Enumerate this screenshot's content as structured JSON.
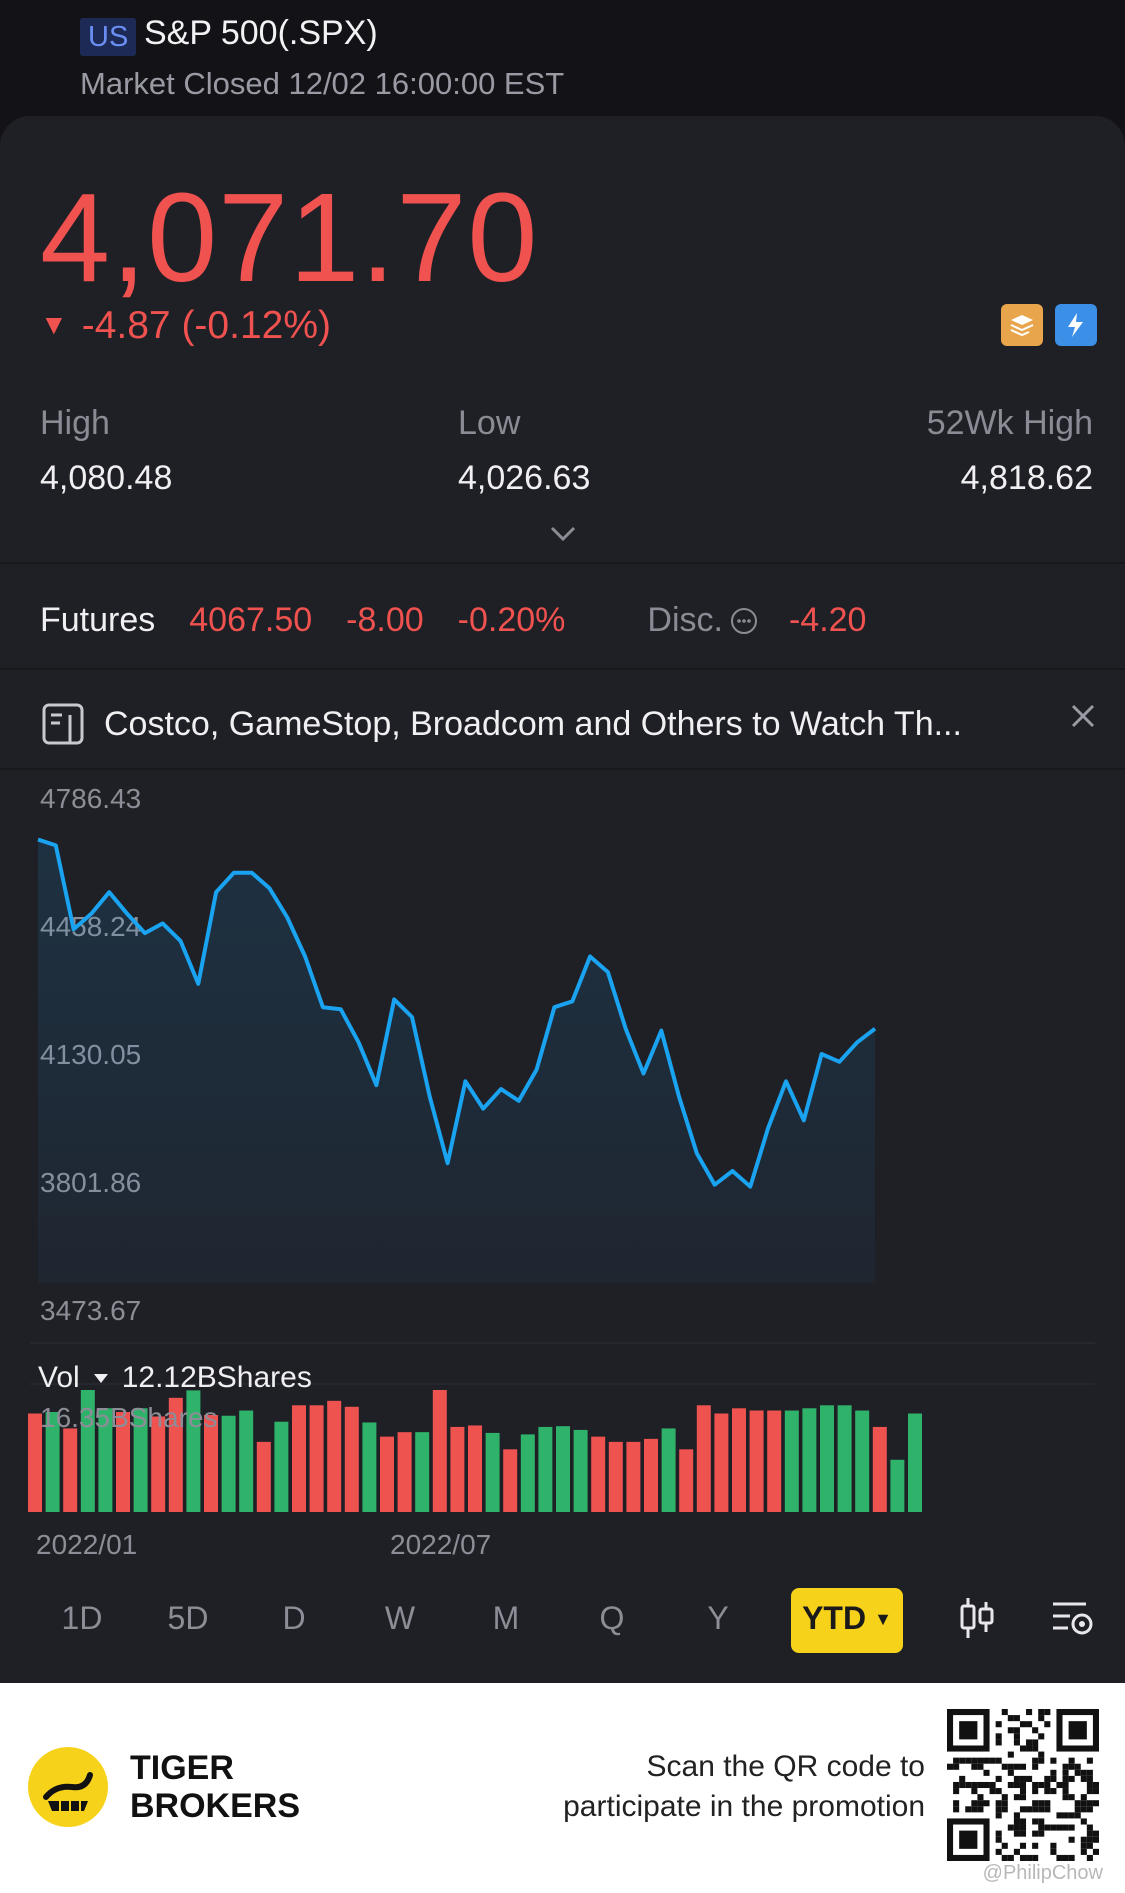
{
  "header": {
    "region": "US",
    "title": "S&P 500(.SPX)",
    "status": "Market Closed 12/02 16:00:00 EST"
  },
  "quote": {
    "price": "4,071.70",
    "change": "-4.87 (-0.12%)",
    "direction_icon": "down-triangle-icon",
    "badges": [
      "stack-a-icon",
      "lightning-1-icon"
    ]
  },
  "stats": {
    "high_label": "High",
    "high_value": "4,080.48",
    "low_label": "Low",
    "low_value": "4,026.63",
    "wk52_label": "52Wk High",
    "wk52_value": "4,818.62"
  },
  "futures": {
    "label": "Futures",
    "price": "4067.50",
    "change": "-8.00",
    "change_pct": "-0.20%",
    "disc_label": "Disc.",
    "disc_value": "-4.20"
  },
  "news": {
    "headline": "Costco, GameStop, Broadcom and Others to Watch Th..."
  },
  "volume": {
    "label": "Vol",
    "value": "12.12BShares",
    "scale_label": "16.35BShares"
  },
  "periods": [
    "1D",
    "5D",
    "D",
    "W",
    "M",
    "Q",
    "Y"
  ],
  "active_period": "YTD",
  "footer": {
    "brand_line1": "TIGER",
    "brand_line2": "BROKERS",
    "promo_line1": "Scan the QR code to",
    "promo_line2": "participate in the promotion",
    "watermark": "@PhilipChow"
  },
  "colors": {
    "up": "#2fb36b",
    "down": "#ef5350",
    "line": "#1aa3f0",
    "accent": "#f7d21a"
  },
  "chart_data": {
    "type": "line",
    "y_ticks": [
      "4786.43",
      "4458.24",
      "4130.05",
      "3801.86",
      "3473.67"
    ],
    "ylim": [
      3473.67,
      4786.43
    ],
    "x_ticks": [
      "2022/01",
      "2022/07"
    ],
    "series": [
      {
        "values": [
          4680,
          4665,
          4450,
          4490,
          4545,
          4490,
          4440,
          4465,
          4420,
          4310,
          4545,
          4595,
          4595,
          4555,
          4480,
          4380,
          4250,
          4245,
          4160,
          4050,
          4270,
          4225,
          4020,
          3850,
          4060,
          3990,
          4040,
          4010,
          4090,
          4250,
          4265,
          4380,
          4340,
          4195,
          4080,
          4190,
          4020,
          3875,
          3795,
          3830,
          3790,
          3940,
          4060,
          3960,
          4130,
          4110,
          4160,
          4195
        ]
      }
    ],
    "volume": {
      "values": [
        13.2,
        13.4,
        11.2,
        16.35,
        13.9,
        13.4,
        13.9,
        12.8,
        15.3,
        16.3,
        13.0,
        12.9,
        13.6,
        9.4,
        12.1,
        14.3,
        14.3,
        14.9,
        14.1,
        12.0,
        10.1,
        10.7,
        10.7,
        16.35,
        11.4,
        11.6,
        10.6,
        8.4,
        10.4,
        11.4,
        11.5,
        11.0,
        10.1,
        9.4,
        9.4,
        9.8,
        11.2,
        8.4,
        14.3,
        13.2,
        13.9,
        13.6,
        13.6,
        13.6,
        13.9,
        14.3,
        14.3,
        13.6,
        11.4,
        7.0,
        13.2
      ],
      "colors": [
        "r",
        "g",
        "r",
        "g",
        "g",
        "r",
        "g",
        "r",
        "r",
        "g",
        "r",
        "g",
        "g",
        "r",
        "g",
        "r",
        "r",
        "r",
        "r",
        "g",
        "r",
        "r",
        "g",
        "r",
        "r",
        "r",
        "g",
        "r",
        "g",
        "g",
        "g",
        "g",
        "r",
        "r",
        "r",
        "r",
        "g",
        "r",
        "r",
        "r",
        "r",
        "r",
        "r",
        "g",
        "g",
        "g",
        "g",
        "g",
        "r",
        "g",
        "g"
      ]
    }
  }
}
